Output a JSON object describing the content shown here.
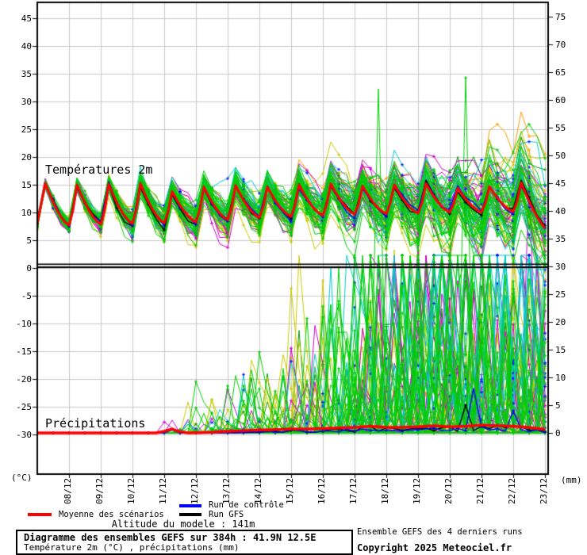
{
  "colors": {
    "background": "#ffffff",
    "grid": "#c8c8c8",
    "axis": "#000000",
    "mean": "#ff0000",
    "control": "#0000ff",
    "gfs": "#000000",
    "marker_blue": "#0000ff"
  },
  "chart": {
    "annotations": {
      "temp": "Températures 2m",
      "precip": "Précipitations"
    },
    "left_axis": {
      "unit": "(°C)",
      "ticks": [
        45,
        40,
        35,
        30,
        25,
        20,
        15,
        10,
        5,
        0,
        -5,
        -10,
        -15,
        -20,
        -25,
        -30
      ]
    },
    "right_axis": {
      "unit": "(mm)",
      "ticks": [
        75,
        70,
        65,
        60,
        55,
        50,
        45,
        40,
        35,
        30,
        25,
        20,
        15,
        10,
        5,
        0
      ]
    },
    "x_axis": {
      "labels": [
        "08/12",
        "09/12",
        "10/12",
        "11/12",
        "12/12",
        "13/12",
        "14/12",
        "15/12",
        "16/12",
        "17/12",
        "18/12",
        "19/12",
        "20/12",
        "21/12",
        "22/12",
        "23/12"
      ]
    }
  },
  "chart_data": {
    "type": "line",
    "title": "Diagramme des ensembles GEFS sur 384h : 41.9N 12.5E",
    "subtitle": "Température 2m (°C) , précipitations (mm)",
    "x_labels": [
      "08/12",
      "09/12",
      "10/12",
      "11/12",
      "12/12",
      "13/12",
      "14/12",
      "15/12",
      "16/12",
      "17/12",
      "18/12",
      "19/12",
      "20/12",
      "21/12",
      "22/12",
      "23/12"
    ],
    "temp_axis": {
      "unit": "°C",
      "ticks": [
        45,
        40,
        35,
        30,
        25,
        20,
        15,
        10,
        5,
        0,
        -5,
        -10,
        -15,
        -20,
        -25,
        -30
      ],
      "zero_line": true
    },
    "precip_axis": {
      "unit": "mm",
      "ticks": [
        75,
        70,
        65,
        60,
        55,
        50,
        45,
        40,
        35,
        30,
        25,
        20,
        15,
        10,
        5,
        0
      ]
    },
    "mean_scenarios": {
      "start_temp": 8.0,
      "end_temp": 6.9,
      "daily_peaks": [
        15.3,
        15.0,
        15.1,
        15.2,
        13.8,
        14.6,
        14.9,
        14.6,
        15.0,
        15.2,
        14.8,
        15.0,
        15.2,
        14.4,
        14.7,
        15.4
      ],
      "daily_troughs": [
        7.6,
        7.8,
        7.9,
        8.0,
        8.2,
        8.6,
        9.0,
        9.2,
        9.4,
        9.6,
        9.7,
        9.8,
        10.0,
        10.0,
        10.1,
        10.2
      ],
      "precip_mm": [
        [
          0,
          0
        ],
        [
          3.75,
          0
        ],
        [
          4.0,
          0.3
        ],
        [
          4.25,
          0.7
        ],
        [
          4.5,
          0.2
        ],
        [
          4.75,
          0
        ],
        [
          5.5,
          0.1
        ],
        [
          6,
          0.3
        ],
        [
          6.5,
          0.4
        ],
        [
          7,
          0.5
        ],
        [
          7.5,
          0.6
        ],
        [
          8,
          0.7
        ],
        [
          8.5,
          0.7
        ],
        [
          9,
          0.8
        ],
        [
          9.5,
          0.9
        ],
        [
          10,
          1.0
        ],
        [
          10.5,
          1.2
        ],
        [
          11,
          1.0
        ],
        [
          11.5,
          1.0
        ],
        [
          12,
          1.1
        ],
        [
          12.5,
          1.3
        ],
        [
          13,
          1.1
        ],
        [
          13.5,
          1.2
        ],
        [
          14,
          1.4
        ],
        [
          14.5,
          1.3
        ],
        [
          15,
          1.2
        ],
        [
          15.5,
          1.0
        ],
        [
          16,
          0.6
        ]
      ]
    },
    "big_precip_spikes": [
      {
        "t": 4.25,
        "mm": 2.3,
        "color": "#cc00cc"
      },
      {
        "t": 10.75,
        "mm": 62,
        "color": "#00cc00"
      },
      {
        "t": 13.5,
        "mm": 64,
        "color": "#00cc00"
      },
      {
        "t": 11.25,
        "mm": 33,
        "color": "#c8c800"
      },
      {
        "t": 15.5,
        "mm": 47,
        "color": "#cc00cc"
      },
      {
        "t": 12.0,
        "mm": 34,
        "color": "#cc00cc"
      },
      {
        "t": 9.25,
        "mm": 30,
        "color": "#00c8c8"
      },
      {
        "t": 14.25,
        "mm": 30,
        "color": "#00c8c8"
      }
    ],
    "ensemble": {
      "members": 80,
      "seed": 1337,
      "step_days": 0.25,
      "span_days": 16,
      "colors": [
        {
          "hex": "#ff9900",
          "count": 6
        },
        {
          "hex": "#009900",
          "count": 4
        },
        {
          "hex": "#c8c800",
          "count": 16
        },
        {
          "hex": "#cc00cc",
          "count": 14
        },
        {
          "hex": "#00c8c8",
          "count": 14
        },
        {
          "hex": "#00cc00",
          "count": 26
        }
      ],
      "temp_spread_start_c": 0.6,
      "temp_spread_end_c": 4.0,
      "precip_member_cap_mm": 32
    }
  },
  "legend": {
    "mean": {
      "label": "Moyenne des scénarios",
      "color": "#ff0000"
    },
    "control": {
      "label": "Run de contrôle",
      "color": "#0000ff"
    },
    "gfs": {
      "label": "Run GFS",
      "color": "#000000"
    },
    "altitude": "Altitude du modele : 141m"
  },
  "footer": {
    "title": "Diagramme des ensembles GEFS sur 384h : 41.9N 12.5E",
    "subtitle": "Température 2m (°C) , précipitations (mm)",
    "info": "Ensemble GEFS des 4 derniers runs",
    "copyright": "Copyright 2025 Meteociel.fr"
  }
}
